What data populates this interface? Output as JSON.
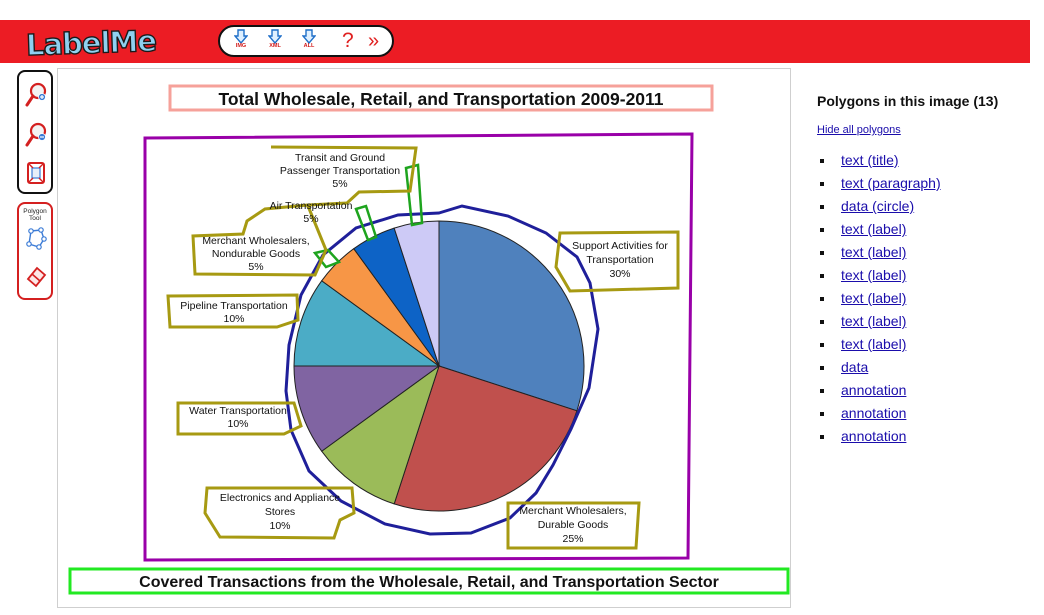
{
  "app": {
    "logo_text": "LabelMe"
  },
  "toolbar": {
    "buttons": [
      {
        "name": "download-image-button",
        "label": "IMG",
        "icon": "download-arrow-icon"
      },
      {
        "name": "download-xml-button",
        "label": "XML",
        "icon": "download-arrow-icon"
      },
      {
        "name": "download-all-button",
        "label": "ALL",
        "icon": "download-arrow-icon"
      }
    ],
    "help_label": "?",
    "more_label": "»"
  },
  "tools": {
    "zoom_in_icon": "zoom-in-icon",
    "zoom_out_icon": "zoom-out-icon",
    "fit_icon": "fit-to-screen-icon",
    "polygon_tool_label": "Polygon Tool",
    "polygon_icon": "polygon-icon",
    "erase_icon": "eraser-icon"
  },
  "colors": {
    "topbar": "#ec1c24",
    "title_box": "#f6a19a",
    "paragraph_box": "#9900a8",
    "circle": "#1f1f9a",
    "label_box": "#a79a12",
    "data_box": "#1ea41e",
    "annotation_box": "#22e922"
  },
  "chart": {
    "title": "Total Wholesale, Retail, and Transportation 2009-2011",
    "footer": "Covered Transactions from the Wholesale, Retail, and Transportation Sector",
    "labels": [
      {
        "lines": [
          "Transit and Ground",
          "Passenger Transportation",
          "5%"
        ]
      },
      {
        "lines": [
          "Air Transportation",
          "5%"
        ]
      },
      {
        "lines": [
          "Merchant Wholesalers,",
          "Nondurable Goods",
          "5%"
        ]
      },
      {
        "lines": [
          "Pipeline Transportation",
          "10%"
        ]
      },
      {
        "lines": [
          "Water Transportation",
          "10%"
        ]
      },
      {
        "lines": [
          "Electronics and Appliance",
          "Stores",
          "10%"
        ]
      },
      {
        "lines": [
          "Merchant Wholesalers,",
          "Durable Goods",
          "25%"
        ]
      },
      {
        "lines": [
          "Support Activities for",
          "Transportation",
          "30%"
        ]
      }
    ]
  },
  "chart_data": {
    "type": "pie",
    "title": "Total Wholesale, Retail, and Transportation 2009-2011",
    "categories": [
      "Support Activities for Transportation",
      "Merchant Wholesalers, Durable Goods",
      "Electronics and Appliance Stores",
      "Water Transportation",
      "Pipeline Transportation",
      "Merchant Wholesalers, Nondurable Goods",
      "Air Transportation",
      "Transit and Ground Passenger Transportation"
    ],
    "values": [
      30,
      25,
      10,
      10,
      10,
      5,
      5,
      5
    ],
    "colors": [
      "#4f81bd",
      "#c0504d",
      "#9bbb59",
      "#8064a2",
      "#4bacc6",
      "#f79646",
      "#0d63c6",
      "#cdcaf6"
    ]
  },
  "right_panel": {
    "heading": "Polygons in this image (13)",
    "hide_link": "Hide all polygons",
    "polygons": [
      "text (title)",
      "text (paragraph)",
      "data (circle)",
      "text (label)",
      "text (label)",
      "text (label)",
      "text (label)",
      "text (label)",
      "text (label)",
      "data",
      "annotation",
      "annotation",
      "annotation"
    ]
  }
}
